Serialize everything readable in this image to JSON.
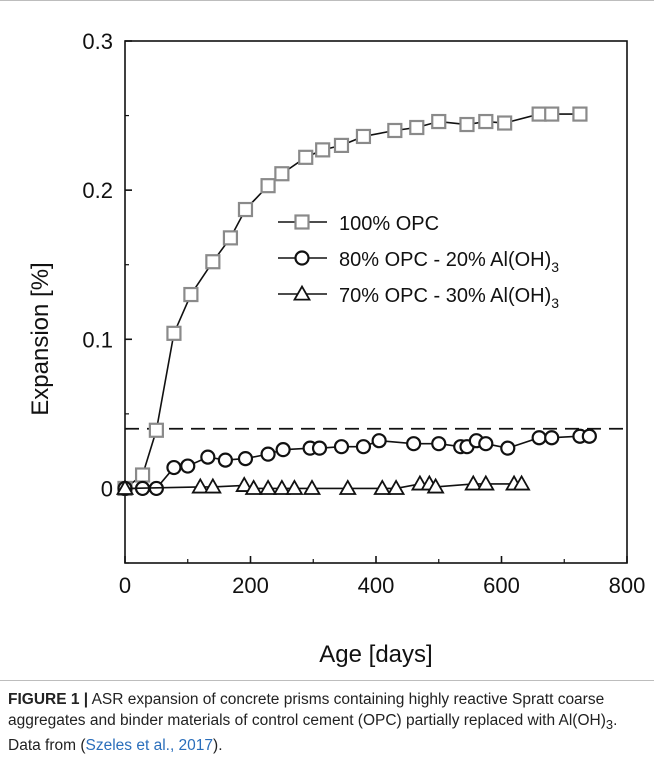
{
  "chart_data": {
    "type": "scatter",
    "xlabel": "Age [days]",
    "ylabel": "Expansion [%]",
    "xlim": [
      0,
      800
    ],
    "ylim": [
      -0.05,
      0.3
    ],
    "xticks": [
      "0",
      "200",
      "400",
      "600",
      "800"
    ],
    "yticks": [
      "0",
      "0.1",
      "0.2",
      "0.3"
    ],
    "threshold_line": {
      "y": 0.04,
      "style": "dashed"
    },
    "grid": false,
    "legend_position": "center-right",
    "series": [
      {
        "name": "100% OPC",
        "marker": "square",
        "color": "#8a8a8a",
        "x": [
          0,
          28,
          50,
          78,
          105,
          140,
          168,
          192,
          228,
          250,
          288,
          315,
          345,
          380,
          430,
          465,
          500,
          545,
          575,
          605,
          660,
          680,
          725
        ],
        "y": [
          0.0,
          0.009,
          0.039,
          0.104,
          0.13,
          0.152,
          0.168,
          0.187,
          0.203,
          0.211,
          0.222,
          0.227,
          0.23,
          0.236,
          0.24,
          0.242,
          0.246,
          0.244,
          0.246,
          0.245,
          0.251,
          0.251,
          0.251
        ]
      },
      {
        "name": "80% OPC - 20% Al(OH)",
        "name_sub": "3",
        "marker": "circle",
        "color": "#111111",
        "x": [
          0,
          28,
          50,
          78,
          100,
          132,
          160,
          192,
          228,
          252,
          295,
          310,
          345,
          380,
          405,
          460,
          500,
          535,
          545,
          560,
          575,
          610,
          660,
          680,
          725,
          740
        ],
        "y": [
          0.0,
          0.0,
          0.0,
          0.014,
          0.015,
          0.021,
          0.019,
          0.02,
          0.023,
          0.026,
          0.027,
          0.027,
          0.028,
          0.028,
          0.032,
          0.03,
          0.03,
          0.028,
          0.028,
          0.032,
          0.03,
          0.027,
          0.034,
          0.034,
          0.035,
          0.035
        ]
      },
      {
        "name": "70% OPC - 30% Al(OH)",
        "name_sub": "3",
        "marker": "triangle",
        "color": "#111111",
        "x": [
          0,
          120,
          140,
          190,
          205,
          228,
          250,
          270,
          298,
          355,
          410,
          432,
          470,
          485,
          495,
          555,
          575,
          620,
          632
        ],
        "y": [
          0.0,
          0.001,
          0.001,
          0.002,
          0.0,
          0.0,
          0.0,
          0.0,
          0.0,
          0.0,
          0.0,
          0.0,
          0.003,
          0.003,
          0.001,
          0.003,
          0.003,
          0.003,
          0.003
        ]
      }
    ]
  },
  "caption": {
    "label": "FIGURE 1 |",
    "text_before": " ASR expansion of concrete prisms containing highly reactive Spratt coarse aggregates and binder materials of control cement (OPC) partially replaced with Al(OH)",
    "text_sub": "3",
    "text_mid": ". Data from (",
    "citation": "Szeles et al., 2017",
    "text_after": ")."
  }
}
